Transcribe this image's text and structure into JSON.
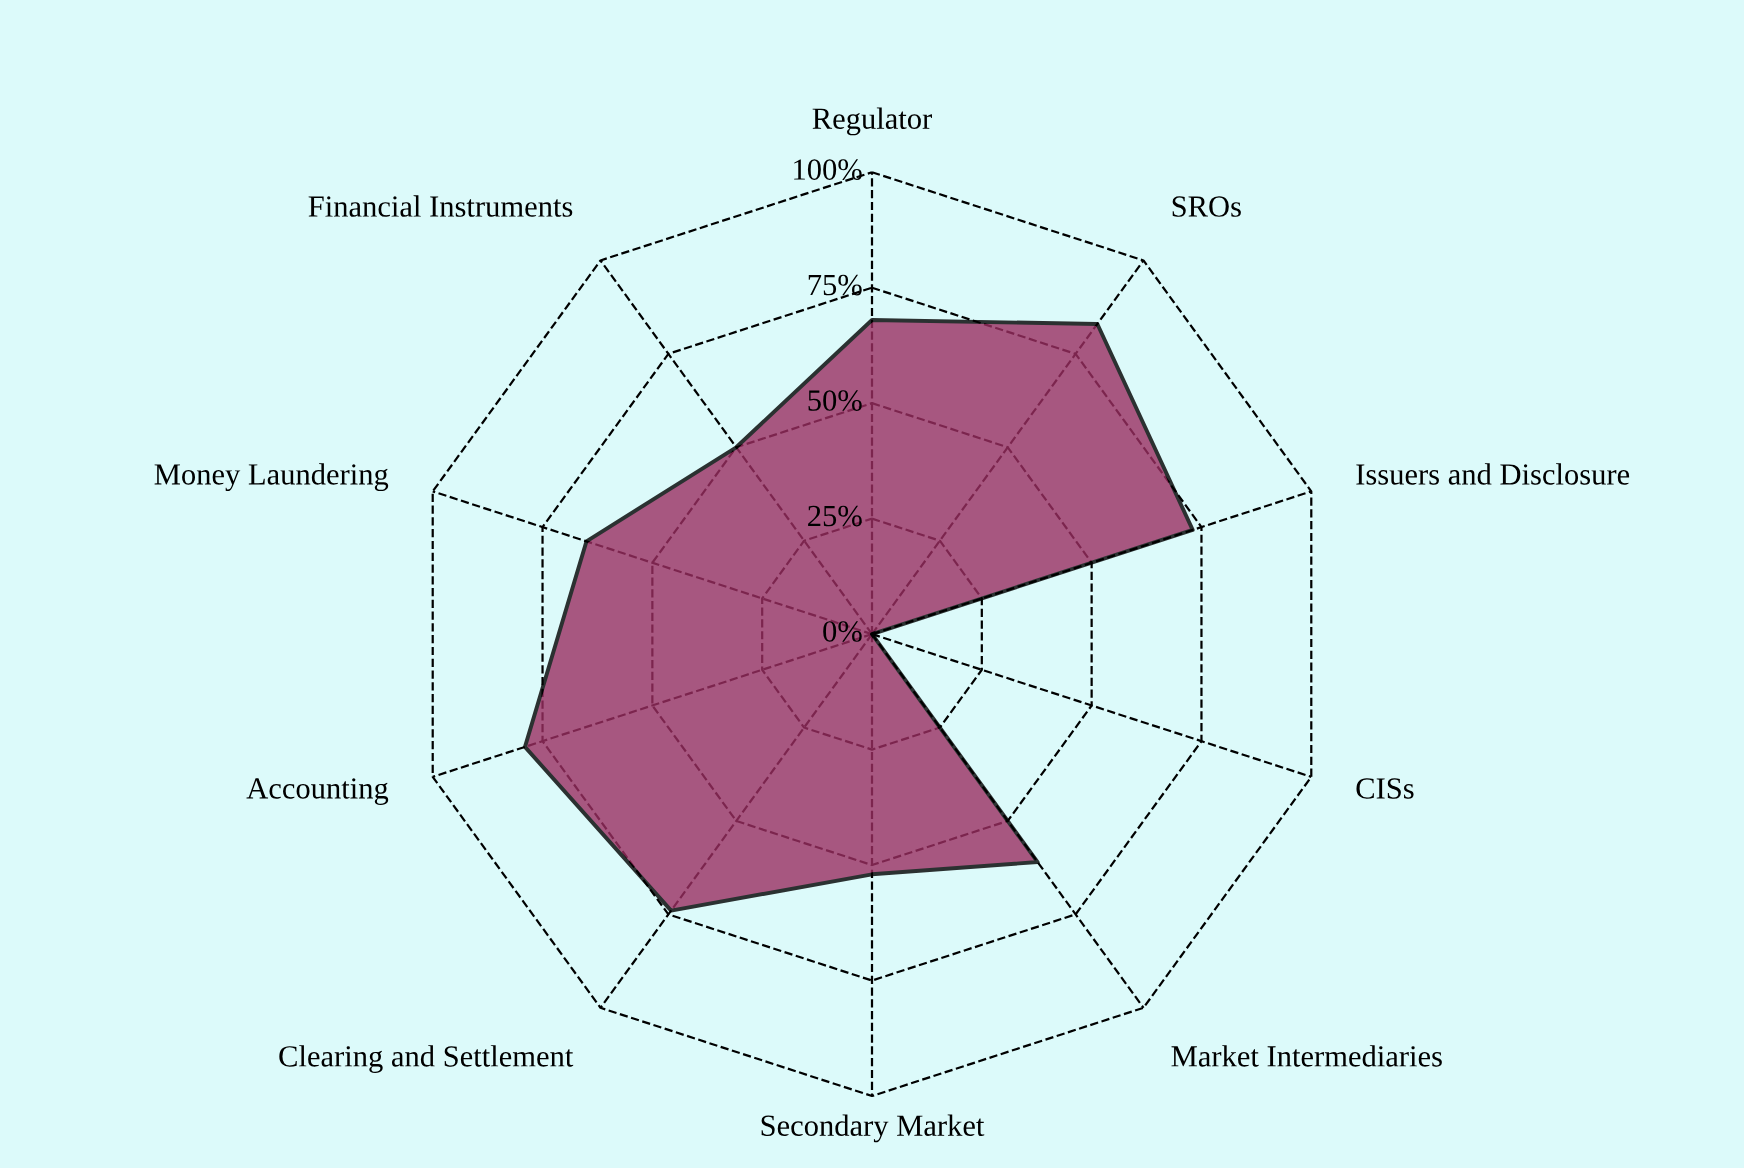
{
  "chart_data": {
    "type": "radar",
    "categories": [
      "Regulator",
      "SROs",
      "Issuers and Disclosure",
      "CISs",
      "Market Intermediaries",
      "Secondary Market",
      "Clearing and Settlement",
      "Accounting",
      "Money Laundering",
      "Financial Instruments"
    ],
    "series": [
      {
        "color": "#9b2f62",
        "values": [
          68,
          83,
          73,
          0,
          61,
          52,
          74,
          79,
          65,
          50
        ]
      }
    ],
    "ylim": [
      0,
      100
    ],
    "yticks": [
      {
        "value": 0,
        "label": "0%"
      },
      {
        "value": 25,
        "label": "25%"
      },
      {
        "value": 50,
        "label": "50%"
      },
      {
        "value": 75,
        "label": "75%"
      },
      {
        "value": 100,
        "label": "100%"
      }
    ],
    "grid": true
  }
}
